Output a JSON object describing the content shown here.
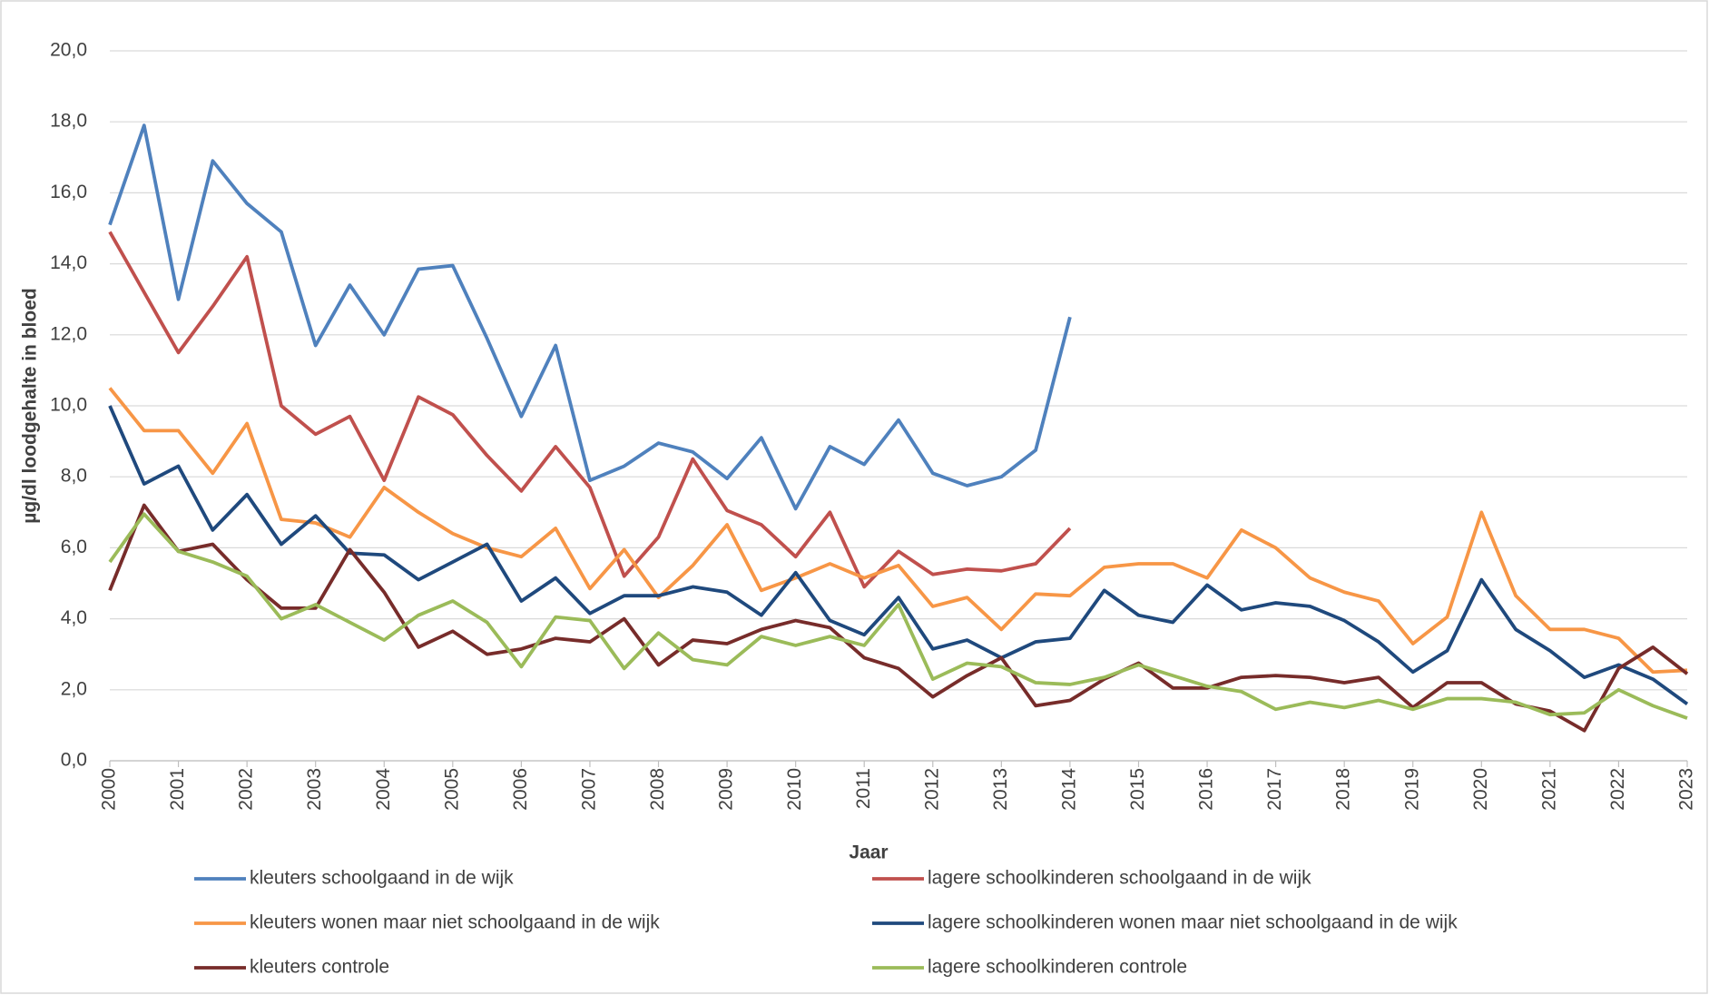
{
  "chart_data": {
    "type": "line",
    "x": [
      2000,
      2000.5,
      2001,
      2001.5,
      2002,
      2002.5,
      2003,
      2003.5,
      2004,
      2004.5,
      2005,
      2005.5,
      2006,
      2006.5,
      2007,
      2007.5,
      2008,
      2008.5,
      2009,
      2009.5,
      2010,
      2010.5,
      2011,
      2011.5,
      2012,
      2012.5,
      2013,
      2013.5,
      2014,
      2014.5,
      2015,
      2015.5,
      2016,
      2016.5,
      2017,
      2017.5,
      2018,
      2018.5,
      2019,
      2019.5,
      2020,
      2020.5,
      2021,
      2021.5,
      2022,
      2022.5,
      2023
    ],
    "xlabel": "Jaar",
    "ylabel": "µg/dl loodgehalte in bloed",
    "xlim": [
      2000,
      2023
    ],
    "xticks": [
      2000,
      2001,
      2002,
      2003,
      2004,
      2005,
      2006,
      2007,
      2008,
      2009,
      2010,
      2011,
      2012,
      2013,
      2014,
      2015,
      2016,
      2017,
      2018,
      2019,
      2020,
      2021,
      2022,
      2023
    ],
    "ylim": [
      0,
      20
    ],
    "yticks": [
      {
        "value": 0,
        "label": "0,0"
      },
      {
        "value": 2,
        "label": "2,0"
      },
      {
        "value": 4,
        "label": "4,0"
      },
      {
        "value": 6,
        "label": "6,0"
      },
      {
        "value": 8,
        "label": "8,0"
      },
      {
        "value": 10,
        "label": "10,0"
      },
      {
        "value": 12,
        "label": "12,0"
      },
      {
        "value": 14,
        "label": "14,0"
      },
      {
        "value": 16,
        "label": "16,0"
      },
      {
        "value": 18,
        "label": "18,0"
      },
      {
        "value": 20,
        "label": "20,0"
      }
    ],
    "grid": true,
    "legend": "bottom",
    "series": [
      {
        "name": "kleuters schoolgaand in de wijk",
        "color": "#4f81bd",
        "values": [
          15.1,
          17.9,
          13.0,
          16.9,
          15.7,
          14.9,
          11.7,
          13.4,
          12.0,
          13.85,
          13.95,
          11.9,
          9.7,
          11.7,
          7.9,
          8.3,
          8.95,
          8.7,
          7.95,
          9.1,
          7.1,
          8.85,
          8.35,
          9.6,
          8.1,
          7.75,
          8.0,
          8.75,
          12.5,
          null,
          null,
          null,
          null,
          null,
          null,
          null,
          null,
          null,
          null,
          null,
          null,
          null,
          null,
          null,
          null,
          null,
          null
        ]
      },
      {
        "name": "lagere schoolkinderen schoolgaand in de wijk",
        "color": "#c0504d",
        "values": [
          14.9,
          13.2,
          11.5,
          12.8,
          14.2,
          10.0,
          9.2,
          9.7,
          7.9,
          10.25,
          9.75,
          8.6,
          7.6,
          8.85,
          7.7,
          5.2,
          6.3,
          8.5,
          7.05,
          6.65,
          5.75,
          7.0,
          4.9,
          5.9,
          5.25,
          5.4,
          5.35,
          5.55,
          6.55,
          null,
          null,
          null,
          null,
          null,
          null,
          null,
          null,
          null,
          null,
          null,
          null,
          null,
          null,
          null,
          null,
          null,
          null
        ]
      },
      {
        "name": "kleuters wonen maar niet schoolgaand in de wijk",
        "color": "#f79646",
        "values": [
          10.5,
          9.3,
          9.3,
          8.1,
          9.5,
          6.8,
          6.7,
          6.3,
          7.7,
          7.0,
          6.4,
          6.0,
          5.75,
          6.55,
          4.85,
          5.95,
          4.6,
          5.5,
          6.65,
          4.8,
          5.15,
          5.55,
          5.15,
          5.5,
          4.35,
          4.6,
          3.7,
          4.7,
          4.65,
          5.45,
          5.55,
          5.55,
          5.15,
          6.5,
          6.0,
          5.15,
          4.75,
          4.5,
          3.3,
          4.05,
          7.0,
          4.65,
          3.7,
          3.7,
          3.45,
          2.5,
          2.55
        ]
      },
      {
        "name": "lagere schoolkinderen wonen maar niet schoolgaand in de wijk",
        "color": "#1f497d",
        "values": [
          10.0,
          7.8,
          8.3,
          6.5,
          7.5,
          6.1,
          6.9,
          5.85,
          5.8,
          5.1,
          5.6,
          6.1,
          4.5,
          5.15,
          4.15,
          4.65,
          4.65,
          4.9,
          4.75,
          4.1,
          5.3,
          3.95,
          3.55,
          4.6,
          3.15,
          3.4,
          2.9,
          3.35,
          3.45,
          4.8,
          4.1,
          3.9,
          4.95,
          4.25,
          4.45,
          4.35,
          3.95,
          3.35,
          2.5,
          3.1,
          5.1,
          3.7,
          3.1,
          2.35,
          2.7,
          2.3,
          1.6
        ]
      },
      {
        "name": "kleuters controle",
        "color": "#772c2a",
        "values": [
          4.8,
          7.2,
          5.9,
          6.1,
          5.1,
          4.3,
          4.3,
          5.95,
          4.75,
          3.2,
          3.65,
          3.0,
          3.15,
          3.45,
          3.35,
          4.0,
          2.7,
          3.4,
          3.3,
          3.7,
          3.95,
          3.75,
          2.9,
          2.6,
          1.8,
          2.4,
          2.9,
          1.55,
          1.7,
          2.3,
          2.75,
          2.05,
          2.05,
          2.35,
          2.4,
          2.35,
          2.2,
          2.35,
          1.5,
          2.2,
          2.2,
          1.6,
          1.4,
          0.85,
          2.6,
          3.2,
          2.45
        ]
      },
      {
        "name": "lagere schoolkinderen controle",
        "color": "#9bbb59",
        "values": [
          5.6,
          6.95,
          5.9,
          5.6,
          5.2,
          4.0,
          4.4,
          3.9,
          3.4,
          4.1,
          4.5,
          3.9,
          2.65,
          4.05,
          3.95,
          2.6,
          3.6,
          2.85,
          2.7,
          3.5,
          3.25,
          3.5,
          3.25,
          4.4,
          2.3,
          2.75,
          2.65,
          2.2,
          2.15,
          2.35,
          2.7,
          2.4,
          2.1,
          1.95,
          1.45,
          1.65,
          1.5,
          1.7,
          1.45,
          1.75,
          1.75,
          1.65,
          1.3,
          1.35,
          2.0,
          1.55,
          1.2
        ]
      }
    ]
  }
}
